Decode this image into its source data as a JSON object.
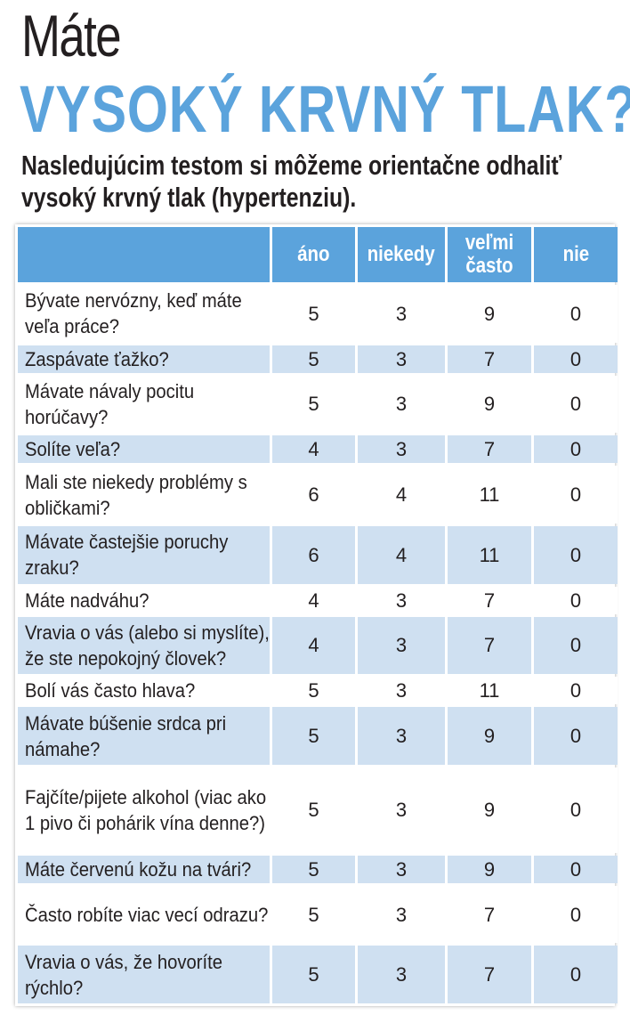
{
  "heading": {
    "line1": "Máte",
    "line2": "VYSOKÝ KRVNÝ TLAK?",
    "subtitle": "Nasledujúcim testom si môžeme orientačne odhaliť vysoký krvný tlak (hypertenziu)."
  },
  "colors": {
    "accent": "#5ba3dc",
    "row_alt": "#cfe0f1"
  },
  "table": {
    "headers": [
      "",
      "áno",
      "niekedy",
      "veľmi často",
      "nie"
    ],
    "rows": [
      {
        "question": "Bývate nervózny, keď máte veľa práce?",
        "ano": "5",
        "niekedy": "3",
        "velmi_casto": "9",
        "nie": "0"
      },
      {
        "question": "Zaspávate ťažko?",
        "ano": "5",
        "niekedy": "3",
        "velmi_casto": "7",
        "nie": "0"
      },
      {
        "question": "Mávate návaly pocitu horúčavy?",
        "ano": "5",
        "niekedy": "3",
        "velmi_casto": "9",
        "nie": "0"
      },
      {
        "question": "Solíte veľa?",
        "ano": "4",
        "niekedy": "3",
        "velmi_casto": "7",
        "nie": "0"
      },
      {
        "question": "Mali ste niekedy problémy s obličkami?",
        "ano": "6",
        "niekedy": "4",
        "velmi_casto": "11",
        "nie": "0"
      },
      {
        "question": "Mávate častejšie poruchy zraku?",
        "ano": "6",
        "niekedy": "4",
        "velmi_casto": "11",
        "nie": "0"
      },
      {
        "question": "Máte nadváhu?",
        "ano": "4",
        "niekedy": "3",
        "velmi_casto": "7",
        "nie": "0"
      },
      {
        "question": "Vravia o vás (alebo si myslíte), že ste nepokojný človek?",
        "ano": "4",
        "niekedy": "3",
        "velmi_casto": "7",
        "nie": "0"
      },
      {
        "question": "Bolí vás často hlava?",
        "ano": "5",
        "niekedy": "3",
        "velmi_casto": "11",
        "nie": "0"
      },
      {
        "question": "Mávate búšenie srdca pri námahe?",
        "ano": "5",
        "niekedy": "3",
        "velmi_casto": "9",
        "nie": "0"
      },
      {
        "question": "Fajčíte/pijete alkohol (viac ako 1 pivo či pohárik vína denne?)",
        "ano": "5",
        "niekedy": "3",
        "velmi_casto": "9",
        "nie": "0"
      },
      {
        "question": "Máte červenú kožu na tvári?",
        "ano": "5",
        "niekedy": "3",
        "velmi_casto": "9",
        "nie": "0"
      },
      {
        "question": "Často robíte viac vecí odrazu?",
        "ano": "5",
        "niekedy": "3",
        "velmi_casto": "7",
        "nie": "0"
      },
      {
        "question": "Vravia o vás, že hovoríte rýchlo?",
        "ano": "5",
        "niekedy": "3",
        "velmi_casto": "7",
        "nie": "0"
      }
    ]
  }
}
